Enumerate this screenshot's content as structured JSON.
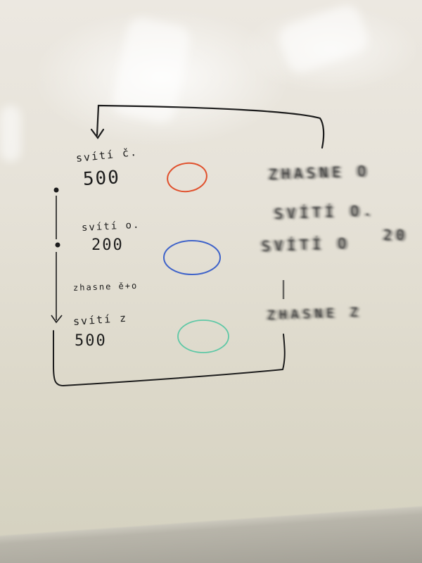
{
  "board": {
    "left_column": {
      "item1_label": "svítí č.",
      "item1_value": "500",
      "item2_label": "svítí o.",
      "item2_value": "200",
      "transition_label": "zhasne ě+o",
      "item3_label": "svítí z",
      "item3_value": "500"
    },
    "right_column": {
      "line1": "ZHASNE O",
      "line2": "SVÍTÍ O.",
      "line3": "SVÍTÍ O",
      "line3_extra": "20",
      "line4": "ZHASNE Z"
    },
    "circles": [
      {
        "name": "red",
        "color": "#e0502c"
      },
      {
        "name": "blue",
        "color": "#3f63c9"
      },
      {
        "name": "green",
        "color": "#5fc8a6"
      }
    ],
    "marker_color": "#1c1c1c"
  }
}
